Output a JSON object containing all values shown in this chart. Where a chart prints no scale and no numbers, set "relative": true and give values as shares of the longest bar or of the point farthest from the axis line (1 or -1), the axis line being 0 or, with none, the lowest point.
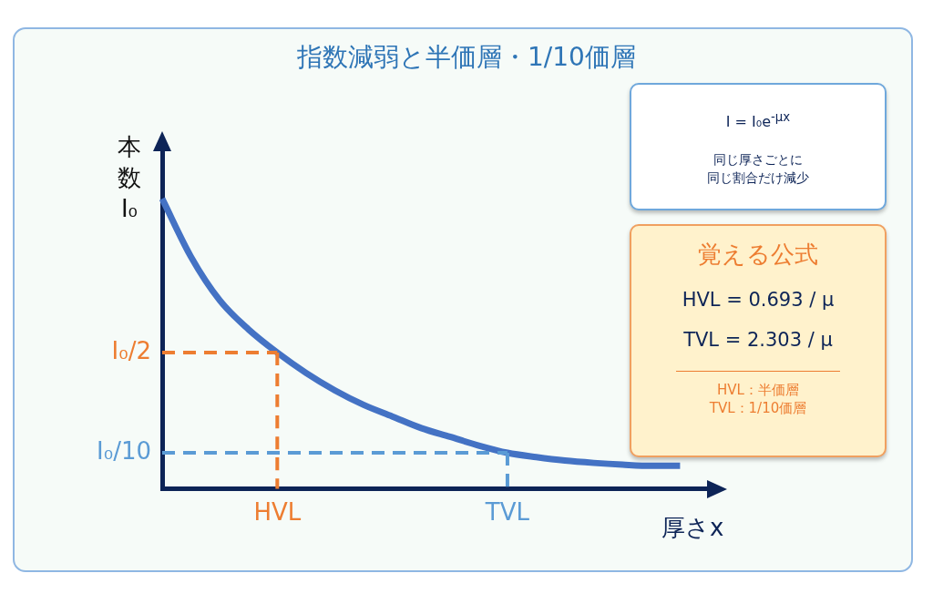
{
  "chart_data": {
    "type": "line",
    "title": "指数減弱と半価層・1/10価層",
    "xlabel": "厚さx",
    "ylabel": "本数I₀",
    "relative": true,
    "categories": [
      null,
      null,
      null,
      null,
      "HVL",
      null,
      null,
      null,
      null,
      null,
      null,
      null,
      "TVL",
      null,
      null,
      null,
      null,
      null,
      null,
      null
    ],
    "grid": false,
    "legend": false,
    "marker": "none",
    "series": [
      {
        "color": "#4472c4",
        "line_style": "solid",
        "values": [
          1,
          0.8,
          0.65,
          0.55,
          0.47,
          0.4,
          0.34,
          0.29,
          0.25,
          0.21,
          0.18,
          0.15,
          0.125,
          0.11,
          0.098,
          0.09,
          0.084,
          0.08,
          0.08,
          null
        ]
      },
      {
        "color": "#ed7d31",
        "line_style": "dashed",
        "values": [
          0.47,
          0.47,
          0.47,
          0.47,
          0.47,
          null,
          null,
          null,
          null,
          null,
          null,
          null,
          null,
          null,
          null,
          null,
          null,
          null,
          null,
          null
        ]
      },
      {
        "color": "#5b9bd5",
        "line_style": "dashed",
        "values": [
          0.125,
          0.125,
          0.125,
          0.125,
          0.125,
          0.125,
          0.125,
          0.125,
          0.125,
          0.125,
          0.125,
          0.125,
          0.125,
          null,
          null,
          null,
          null,
          null,
          null,
          null
        ]
      },
      {
        "color": "#ed7d31",
        "line_style": "dashed",
        "x": [
          "HVL",
          "HVL"
        ],
        "values": [
          0.47,
          0
        ]
      },
      {
        "color": "#5b9bd5",
        "line_style": "dashed",
        "x": [
          "TVL",
          "TVL"
        ],
        "values": [
          0.125,
          0
        ]
      }
    ],
    "annotations": [
      "I₀/2",
      "I₀/10",
      "I = I₀e$^{-μx}$",
      "同じ厚さごとに",
      "同じ割合だけ減少",
      "覚える公式",
      "HVL = 0.693 / μ",
      "TVL = 2.303 / μ",
      "HVL：半価層",
      "TVL：1/10価層"
    ]
  }
}
